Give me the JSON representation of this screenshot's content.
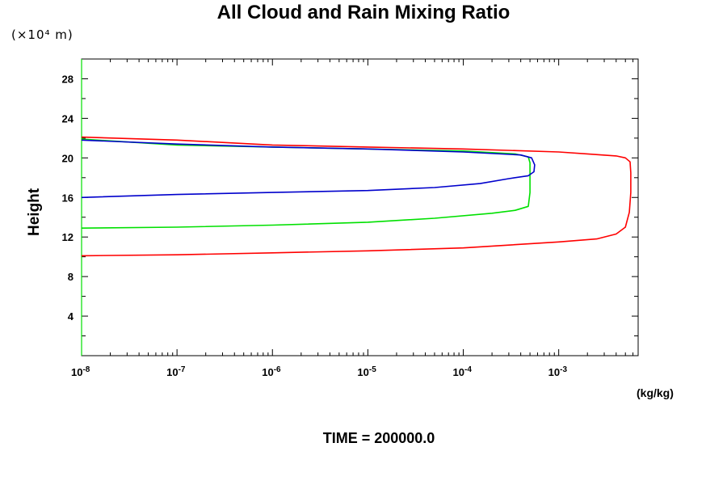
{
  "chart_data": {
    "type": "line",
    "title": "All Cloud and Rain Mixing Ratio",
    "ylabel": "Height",
    "y_unit": "(×10⁴ m)",
    "x_unit": "(kg/kg)",
    "x_scale": "log",
    "xlim": [
      1e-08,
      0.0068
    ],
    "ylim": [
      0,
      30
    ],
    "grid": false,
    "x_ticks": [
      {
        "value": 1e-08,
        "base": "10",
        "exp": "-8"
      },
      {
        "value": 1e-07,
        "base": "10",
        "exp": "-7"
      },
      {
        "value": 1e-06,
        "base": "10",
        "exp": "-6"
      },
      {
        "value": 1e-05,
        "base": "10",
        "exp": "-5"
      },
      {
        "value": 0.0001,
        "base": "10",
        "exp": "-4"
      },
      {
        "value": 0.001,
        "base": "10",
        "exp": "-3"
      }
    ],
    "y_ticks": [
      4,
      8,
      12,
      16,
      20,
      24,
      28
    ],
    "series": [
      {
        "color": "#ff0000",
        "x": [
          1e-08,
          1e-07,
          1e-06,
          1e-05,
          0.0001,
          0.001,
          0.0025,
          0.004,
          0.005,
          0.0055,
          0.0057,
          0.0057,
          0.0056,
          0.005,
          0.004,
          0.002,
          0.001,
          0.0001,
          1e-05,
          1e-06,
          1e-07,
          1e-08
        ],
        "y": [
          10.1,
          10.2,
          10.4,
          10.6,
          10.9,
          11.5,
          11.8,
          12.3,
          13.0,
          14.5,
          16.5,
          18.5,
          19.6,
          20.0,
          20.2,
          20.4,
          20.6,
          20.9,
          21.1,
          21.3,
          21.8,
          22.1
        ]
      },
      {
        "color": "#00e000",
        "x": [
          1e-08,
          1e-07,
          1e-06,
          1e-05,
          5e-05,
          0.0002,
          0.00035,
          0.00048,
          0.0005,
          0.0005,
          0.00048,
          0.00035,
          0.0001,
          1e-05,
          1e-06,
          1e-07,
          1e-08
        ],
        "y": [
          12.9,
          13.0,
          13.2,
          13.5,
          13.9,
          14.4,
          14.7,
          15.1,
          16.5,
          19.5,
          20.1,
          20.4,
          20.7,
          20.9,
          21.1,
          21.3,
          21.9
        ]
      },
      {
        "color": "#0000cc",
        "x": [
          1e-08,
          1e-07,
          1e-06,
          1e-05,
          5e-05,
          0.00015,
          0.0003,
          0.00048,
          0.00055,
          0.00056,
          0.00052,
          0.0004,
          0.0001,
          1e-05,
          1e-06,
          1e-07,
          1e-08
        ],
        "y": [
          16.0,
          16.3,
          16.5,
          16.7,
          17.0,
          17.4,
          17.9,
          18.2,
          18.6,
          19.3,
          20.0,
          20.3,
          20.6,
          20.9,
          21.1,
          21.4,
          21.8
        ]
      }
    ],
    "footer": "TIME = 200000.0"
  }
}
